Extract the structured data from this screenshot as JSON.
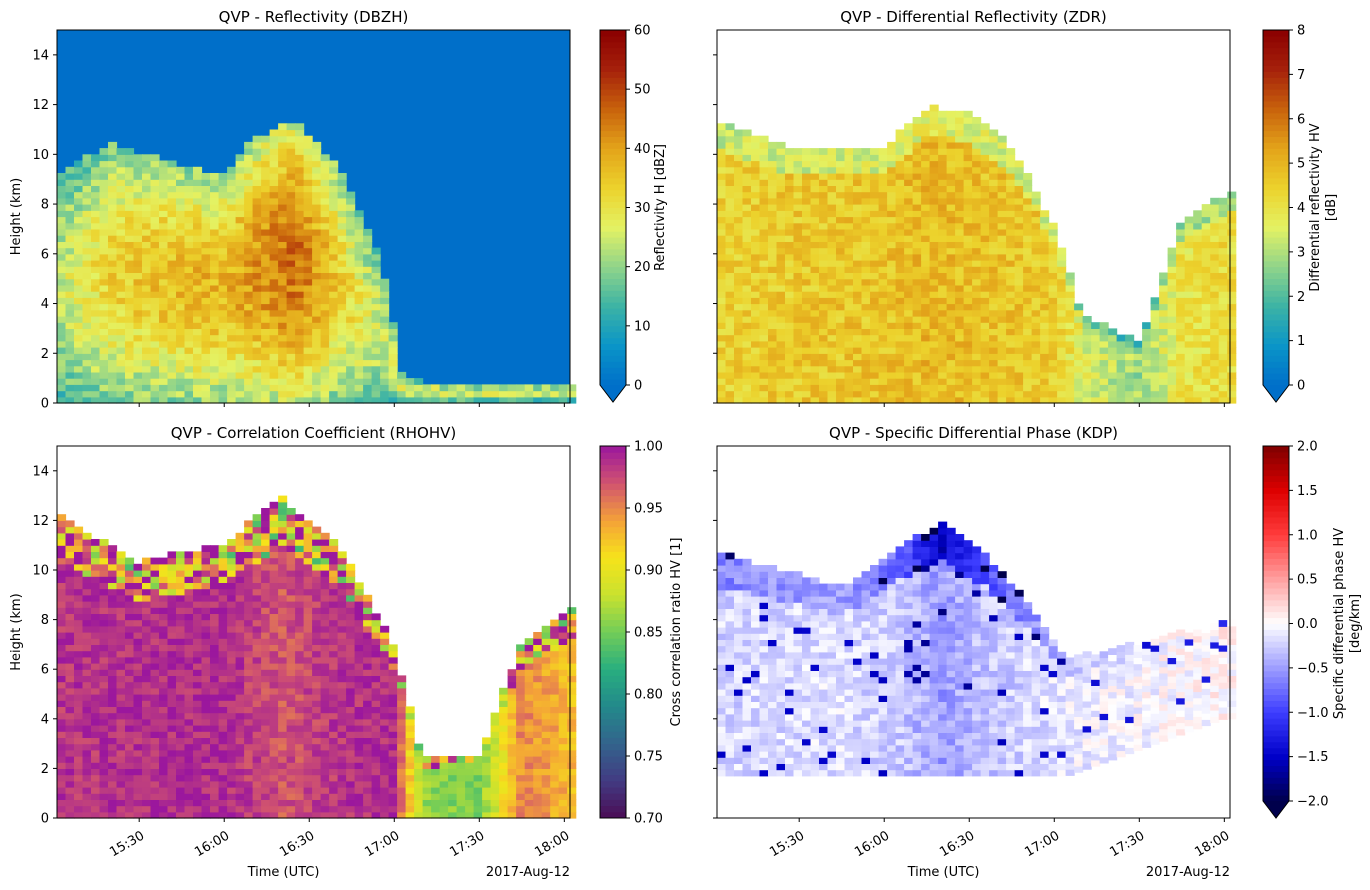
{
  "date_label": "2017-Aug-12",
  "xlabel": "Time (UTC)",
  "x_ticks": [
    "15:30",
    "16:00",
    "16:30",
    "17:00",
    "17:30",
    "18:00"
  ],
  "chart_data": [
    {
      "type": "heatmap",
      "title": "QVP - Reflectivity (DBZH)",
      "ylabel": "Height (km)",
      "xlabel": "",
      "x_range": [
        "15:01",
        "18:02"
      ],
      "ylim": [
        0,
        15
      ],
      "y_ticks": [
        "0",
        "2",
        "4",
        "6",
        "8",
        "10",
        "12",
        "14"
      ],
      "colorbar": {
        "label": "Reflectivity H [dBZ]",
        "range": [
          0,
          60
        ],
        "ticks": [
          "0",
          "10",
          "20",
          "30",
          "40",
          "50",
          "60"
        ],
        "extend": "min",
        "colormap": [
          "#006fc9",
          "#0a95c8",
          "#3cb3a5",
          "#90d48a",
          "#e4f263",
          "#ecd22c",
          "#e3a41a",
          "#c8620c",
          "#a6210b",
          "#8a0000"
        ]
      },
      "profiles": [
        {
          "time": "15:01",
          "top": 9.1,
          "core": 22
        },
        {
          "time": "15:20",
          "top": 10.3,
          "core": 30
        },
        {
          "time": "15:40",
          "top": 9.6,
          "core": 33
        },
        {
          "time": "16:00",
          "top": 9.0,
          "core": 34
        },
        {
          "time": "16:10",
          "top": 10.5,
          "core": 37
        },
        {
          "time": "16:25",
          "top": 11.3,
          "core": 42
        },
        {
          "time": "16:40",
          "top": 9.4,
          "core": 31
        },
        {
          "time": "16:55",
          "top": 5.8,
          "core": 23
        },
        {
          "time": "17:03",
          "top": 0.9,
          "core": 24
        },
        {
          "time": "17:20",
          "top": 0.6,
          "core": 24
        },
        {
          "time": "18:02",
          "top": 0.6,
          "core": 24
        }
      ]
    },
    {
      "type": "heatmap",
      "title": "QVP - Differential Reflectivity (ZDR)",
      "ylabel": "",
      "xlabel": "",
      "x_range": [
        "15:01",
        "18:02"
      ],
      "ylim": [
        0,
        15
      ],
      "y_ticks": [],
      "colorbar": {
        "label": "Differential reflectivity HV\n[dB]",
        "range": [
          0,
          8
        ],
        "ticks": [
          "0",
          "1",
          "2",
          "3",
          "4",
          "5",
          "6",
          "7",
          "8"
        ],
        "extend": "min",
        "colormap": [
          "#006fc9",
          "#0a95c8",
          "#3cb3a5",
          "#90d48a",
          "#e4f263",
          "#ecd22c",
          "#e3a41a",
          "#c8620c",
          "#a6210b",
          "#8a0000"
        ]
      },
      "profiles": [
        {
          "time": "15:01",
          "top": 11.2,
          "core": 4.4
        },
        {
          "time": "15:30",
          "top": 10.0,
          "core": 4.6
        },
        {
          "time": "16:00",
          "top": 10.2,
          "core": 4.7
        },
        {
          "time": "16:15",
          "top": 11.8,
          "core": 4.9
        },
        {
          "time": "16:30",
          "top": 11.6,
          "core": 4.8
        },
        {
          "time": "16:45",
          "top": 10.2,
          "core": 4.7
        },
        {
          "time": "17:00",
          "top": 7.0,
          "core": 4.5
        },
        {
          "time": "17:10",
          "top": 3.4,
          "core": 3.6
        },
        {
          "time": "17:30",
          "top": 2.4,
          "core": 2.8
        },
        {
          "time": "17:45",
          "top": 7.2,
          "core": 4.0
        },
        {
          "time": "18:02",
          "top": 8.4,
          "core": 4.2
        }
      ]
    },
    {
      "type": "heatmap",
      "title": "QVP - Correlation Coefficient (RHOHV)",
      "ylabel": "Height (km)",
      "xlabel": "Time (UTC)",
      "x_range": [
        "15:01",
        "18:02"
      ],
      "ylim": [
        0,
        15
      ],
      "y_ticks": [
        "0",
        "2",
        "4",
        "6",
        "8",
        "10",
        "12",
        "14"
      ],
      "colorbar": {
        "label": "Cross correlation ratio HV [1]",
        "range": [
          0.7,
          1.0
        ],
        "ticks": [
          "0.70",
          "0.75",
          "0.80",
          "0.85",
          "0.90",
          "0.95",
          "1.00"
        ],
        "extend": "none",
        "colormap": [
          "#4b0c55",
          "#423b82",
          "#33638c",
          "#23898b",
          "#28ae7f",
          "#72cd58",
          "#c9e22f",
          "#f6e31a",
          "#f4a238",
          "#d1536f",
          "#9b179d"
        ]
      },
      "profiles": [
        {
          "time": "15:01",
          "top": 12.1,
          "core": 0.985
        },
        {
          "time": "15:30",
          "top": 10.2,
          "core": 0.988
        },
        {
          "time": "16:00",
          "top": 11.0,
          "core": 0.99
        },
        {
          "time": "16:20",
          "top": 12.8,
          "core": 0.97
        },
        {
          "time": "16:40",
          "top": 11.0,
          "core": 0.985
        },
        {
          "time": "17:00",
          "top": 6.8,
          "core": 0.99
        },
        {
          "time": "17:10",
          "top": 2.3,
          "core": 0.86
        },
        {
          "time": "17:30",
          "top": 2.5,
          "core": 0.85
        },
        {
          "time": "17:45",
          "top": 7.0,
          "core": 0.95
        },
        {
          "time": "18:02",
          "top": 8.3,
          "core": 0.93
        }
      ]
    },
    {
      "type": "heatmap",
      "title": "QVP - Specific Differential Phase (KDP)",
      "ylabel": "",
      "xlabel": "Time (UTC)",
      "x_range": [
        "15:01",
        "18:02"
      ],
      "ylim": [
        0,
        15
      ],
      "y_ticks": [],
      "colorbar": {
        "label": "Specific differential phase HV\n[deg/km]",
        "range": [
          -2.0,
          2.0
        ],
        "ticks": [
          "−2.0",
          "−1.5",
          "−1.0",
          "−0.5",
          "0.0",
          "0.5",
          "1.0",
          "1.5",
          "2.0"
        ],
        "extend": "min",
        "colormap": [
          "#00004c",
          "#0000c8",
          "#3d3dff",
          "#9d9dff",
          "#ffffff",
          "#ffa0a0",
          "#ff3c3c",
          "#dd0000",
          "#7f0000"
        ]
      },
      "profiles": [
        {
          "time": "15:05",
          "top": 10.5,
          "bottom": 1.7,
          "core": -0.2
        },
        {
          "time": "15:45",
          "top": 9.2,
          "bottom": 1.7,
          "core": -0.15
        },
        {
          "time": "16:05",
          "top": 10.8,
          "bottom": 1.7,
          "core": -0.25
        },
        {
          "time": "16:20",
          "top": 11.8,
          "bottom": 1.7,
          "core": -0.5
        },
        {
          "time": "16:35",
          "top": 10.6,
          "bottom": 1.7,
          "core": -0.3
        },
        {
          "time": "16:50",
          "top": 8.7,
          "bottom": 1.7,
          "core": -0.2
        },
        {
          "time": "17:05",
          "top": 6.3,
          "bottom": 1.7,
          "core": -0.1
        },
        {
          "time": "18:00",
          "top": 7.8,
          "bottom": 4.0,
          "core": 0.05
        }
      ]
    }
  ]
}
